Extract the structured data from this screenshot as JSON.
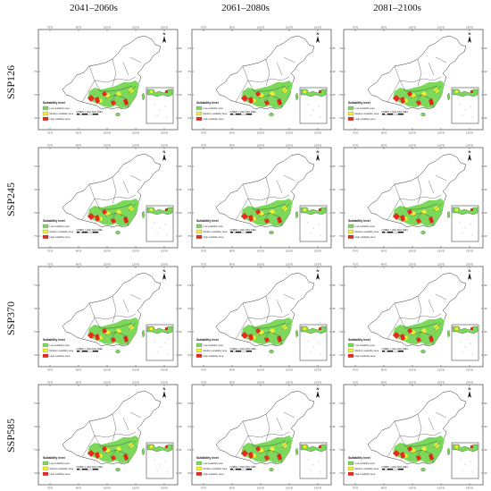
{
  "columns": [
    "2041–2060s",
    "2061–2080s",
    "2081–2100s"
  ],
  "rows": [
    "SSP126",
    "SSP245",
    "SSP370",
    "SSP585"
  ],
  "legend": {
    "title": "Suitability level",
    "items": [
      {
        "label": "Low-suitability area",
        "color": "#7bd85a"
      },
      {
        "label": "Medium-suitability area",
        "color": "#f2ee30"
      },
      {
        "label": "High-suitability area",
        "color": "#e8291c"
      }
    ]
  },
  "north_label": "N",
  "longitude_ticks": [
    "75°E",
    "90°E",
    "105°E",
    "120°E",
    "135°E"
  ],
  "latitude_ticks": [
    "50°N",
    "40°N",
    "30°N",
    "20°N"
  ],
  "scale_labels": [
    "0",
    "250",
    "500",
    "1,000",
    "1,500",
    "2,000",
    "km"
  ],
  "colors": {
    "outline": "#222222",
    "background": "#ffffff",
    "red": "#e8291c",
    "green": "#7bd85a",
    "yellow": "#f2ee30"
  }
}
